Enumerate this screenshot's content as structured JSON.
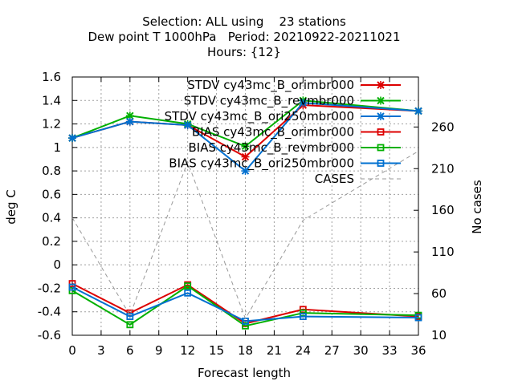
{
  "chart_data": {
    "type": "line",
    "title_lines": [
      "Selection: ALL using    23 stations",
      "Dew point T 1000hPa   Period: 20210922-20211021",
      "Hours: {12}"
    ],
    "xlabel": "Forecast length",
    "ylabel": "deg C",
    "y2label": "No cases",
    "x": [
      0,
      6,
      12,
      18,
      24,
      36
    ],
    "xticks": [
      0,
      3,
      6,
      9,
      12,
      15,
      18,
      21,
      24,
      27,
      30,
      33,
      36
    ],
    "xlim": [
      0,
      36
    ],
    "ylim": [
      -0.6,
      1.6
    ],
    "yticks": [
      -0.6,
      -0.4,
      -0.2,
      0,
      0.2,
      0.4,
      0.6,
      0.8,
      1,
      1.2,
      1.4,
      1.6
    ],
    "ytick_labels": [
      "-0.6",
      "-0.4",
      "-0.2",
      "0",
      "0.2",
      "0.4",
      "0.6",
      "0.8",
      "1",
      "1.2",
      "1.4",
      "1.6"
    ],
    "y2lim": [
      10,
      320
    ],
    "y2ticks": [
      10,
      60,
      110,
      160,
      210,
      260
    ],
    "grid": true,
    "legend_position": "top-right",
    "series": [
      {
        "name": "STDV cy43mc_B_orimbr000",
        "color": "#dd0000",
        "marker": "x",
        "axis": "left",
        "values": [
          1.08,
          1.22,
          1.19,
          0.92,
          1.36,
          1.31
        ]
      },
      {
        "name": "STDV cy43mc_B_revmbr000",
        "color": "#00b000",
        "marker": "x",
        "axis": "left",
        "values": [
          1.08,
          1.27,
          1.2,
          1.01,
          1.4,
          1.31
        ]
      },
      {
        "name": "STDV cy43mc_B_ori250mbr000",
        "color": "#0070d0",
        "marker": "x",
        "axis": "left",
        "values": [
          1.08,
          1.22,
          1.19,
          0.8,
          1.38,
          1.31
        ]
      },
      {
        "name": "BIAS cy43mc_B_orimbr000",
        "color": "#dd0000",
        "marker": "square",
        "axis": "left",
        "values": [
          -0.16,
          -0.41,
          -0.17,
          -0.5,
          -0.38,
          -0.44
        ]
      },
      {
        "name": "BIAS cy43mc_B_revmbr000",
        "color": "#00b000",
        "marker": "square",
        "axis": "left",
        "values": [
          -0.22,
          -0.51,
          -0.18,
          -0.52,
          -0.41,
          -0.43
        ]
      },
      {
        "name": "BIAS cy43mc_B_ori250mbr000",
        "color": "#0070d0",
        "marker": "square",
        "axis": "left",
        "values": [
          -0.19,
          -0.44,
          -0.24,
          -0.48,
          -0.44,
          -0.45
        ]
      },
      {
        "name": "CASES",
        "color": "#999999",
        "marker": "none",
        "dashed": true,
        "axis": "right",
        "values": [
          151,
          34,
          218,
          30,
          148,
          231
        ]
      }
    ]
  }
}
